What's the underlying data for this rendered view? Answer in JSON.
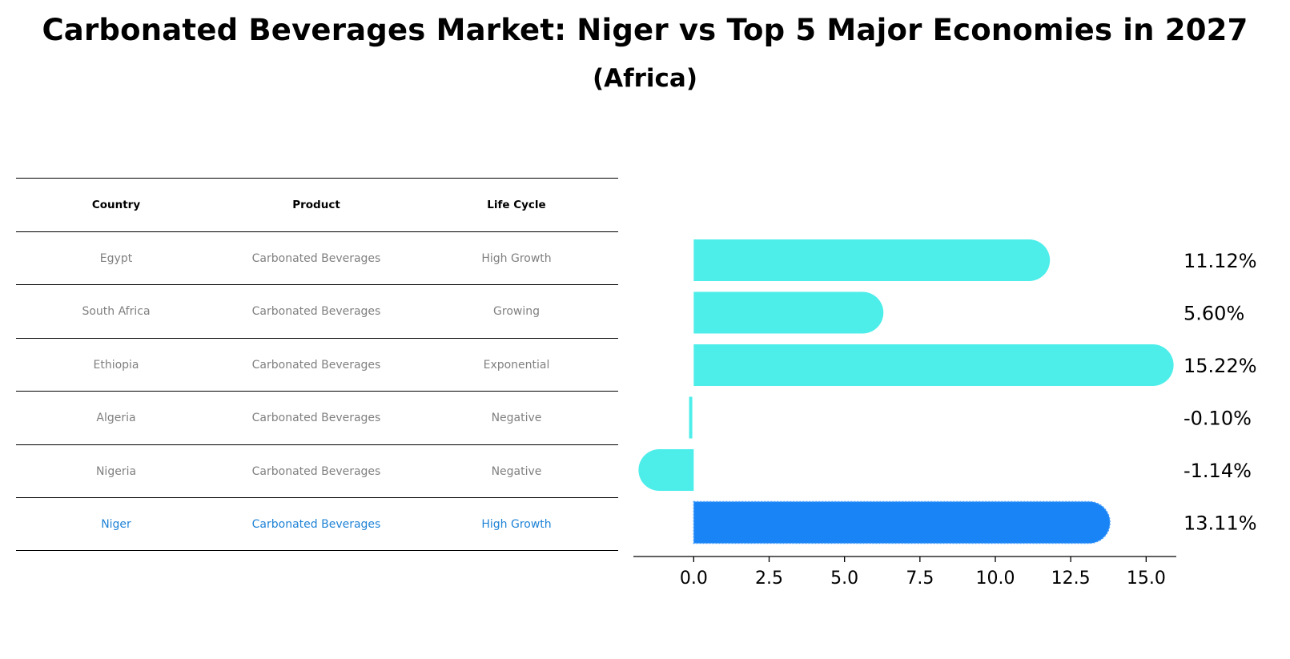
{
  "title": "Carbonated Beverages Market: Niger vs Top 5 Major Economies in 2027",
  "subtitle": "(Africa)",
  "table": {
    "headers": [
      "Country",
      "Product",
      "Life Cycle"
    ],
    "rows": [
      [
        "Egypt",
        "Carbonated Beverages",
        "High Growth"
      ],
      [
        "South Africa",
        "Carbonated Beverages",
        "Growing"
      ],
      [
        "Ethiopia",
        "Carbonated Beverages",
        "Exponential"
      ],
      [
        "Algeria",
        "Carbonated Beverages",
        "Negative"
      ],
      [
        "Nigeria",
        "Carbonated Beverages",
        "Negative"
      ],
      [
        "Niger",
        "Carbonated Beverages",
        "High Growth"
      ]
    ],
    "highlight_row": 5
  },
  "colors": {
    "bar": "#4deeea",
    "highlight_bar": "#1984f5",
    "highlight_text": "#1f83d6",
    "muted_text": "#808080"
  },
  "chart_data": {
    "type": "bar",
    "orientation": "horizontal",
    "categories": [
      "Egypt",
      "South Africa",
      "Ethiopia",
      "Algeria",
      "Nigeria",
      "Niger"
    ],
    "values": [
      11.12,
      5.6,
      15.22,
      -0.1,
      -1.14,
      13.11
    ],
    "labels": [
      "11.12%",
      "5.60%",
      "15.22%",
      "-0.10%",
      "-1.14%",
      "13.11%"
    ],
    "highlight": "Niger",
    "xlim": [
      -2.0,
      16.0
    ],
    "xticks": [
      0.0,
      2.5,
      5.0,
      7.5,
      10.0,
      12.5,
      15.0
    ],
    "xtick_labels": [
      "0.0",
      "2.5",
      "5.0",
      "7.5",
      "10.0",
      "12.5",
      "15.0"
    ],
    "title": "",
    "xlabel": "",
    "ylabel": ""
  }
}
